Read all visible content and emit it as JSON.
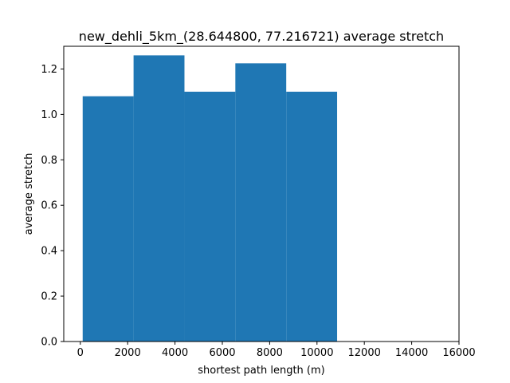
{
  "chart_data": {
    "type": "bar",
    "title": "new_dehli_5km_(28.644800, 77.216721) average stretch",
    "xlabel": "shortest path length (m)",
    "ylabel": "average stretch",
    "xlim": [
      -700,
      16000
    ],
    "ylim": [
      0,
      1.3
    ],
    "xticks": [
      0,
      2000,
      4000,
      6000,
      8000,
      10000,
      12000,
      14000,
      16000
    ],
    "yticks": [
      0.0,
      0.2,
      0.4,
      0.6,
      0.8,
      1.0,
      1.2
    ],
    "grid": false,
    "bar_color": "#1f77b4",
    "bins": [
      {
        "x0": 100,
        "x1": 2250,
        "value": 1.08
      },
      {
        "x0": 2250,
        "x1": 4400,
        "value": 1.26
      },
      {
        "x0": 4400,
        "x1": 6550,
        "value": 1.1
      },
      {
        "x0": 6550,
        "x1": 8700,
        "value": 1.225
      },
      {
        "x0": 8700,
        "x1": 10850,
        "value": 1.1
      }
    ]
  }
}
